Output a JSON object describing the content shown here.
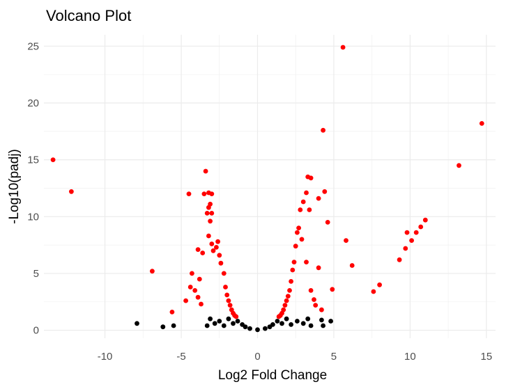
{
  "chart_data": {
    "type": "scatter",
    "title": "Volcano Plot",
    "xlabel": "Log2 Fold Change",
    "ylabel": "-Log10(padj)",
    "xlim": [
      -14,
      15.6
    ],
    "ylim": [
      -0.7,
      26
    ],
    "x_ticks": [
      -10,
      -5,
      0,
      5,
      10,
      15
    ],
    "y_ticks": [
      0,
      5,
      10,
      15,
      20,
      25
    ],
    "x_tick_labels": [
      "-10",
      "-5",
      "0",
      "5",
      "10",
      "15"
    ],
    "y_tick_labels": [
      "0",
      "5",
      "10",
      "15",
      "20",
      "25"
    ],
    "grid": true,
    "legend": "none",
    "colors": {
      "significant": "#ff0000",
      "not_significant": "#000000"
    },
    "series": [
      {
        "color": "#ff0000",
        "points": [
          [
            -13.4,
            15.0
          ],
          [
            -12.2,
            12.2
          ],
          [
            -6.9,
            5.2
          ],
          [
            -5.6,
            1.6
          ],
          [
            -4.7,
            2.6
          ],
          [
            -4.5,
            12.0
          ],
          [
            -4.4,
            3.8
          ],
          [
            -4.3,
            5.0
          ],
          [
            -4.1,
            3.5
          ],
          [
            -3.9,
            2.9
          ],
          [
            -3.9,
            7.1
          ],
          [
            -3.8,
            4.5
          ],
          [
            -3.7,
            2.3
          ],
          [
            -3.6,
            6.8
          ],
          [
            -3.5,
            12.0
          ],
          [
            -3.4,
            14.0
          ],
          [
            -3.3,
            10.3
          ],
          [
            -3.2,
            12.1
          ],
          [
            -3.2,
            10.8
          ],
          [
            -3.1,
            11.1
          ],
          [
            -3.0,
            12.0
          ],
          [
            -3.0,
            10.3
          ],
          [
            -3.1,
            9.6
          ],
          [
            -3.2,
            8.3
          ],
          [
            -3.0,
            7.6
          ],
          [
            -2.9,
            7.0
          ],
          [
            -2.7,
            7.3
          ],
          [
            -2.6,
            7.8
          ],
          [
            -2.5,
            6.6
          ],
          [
            -2.4,
            5.9
          ],
          [
            -2.2,
            5.0
          ],
          [
            -2.1,
            3.8
          ],
          [
            -2.0,
            3.1
          ],
          [
            -1.9,
            2.6
          ],
          [
            -1.8,
            2.2
          ],
          [
            -1.7,
            1.8
          ],
          [
            -1.6,
            1.5
          ],
          [
            -1.5,
            1.3
          ],
          [
            -1.4,
            1.2
          ],
          [
            1.4,
            1.2
          ],
          [
            1.5,
            1.3
          ],
          [
            1.6,
            1.5
          ],
          [
            1.7,
            1.8
          ],
          [
            1.8,
            2.2
          ],
          [
            1.9,
            2.6
          ],
          [
            2.0,
            3.0
          ],
          [
            2.1,
            3.5
          ],
          [
            2.2,
            4.3
          ],
          [
            2.3,
            5.3
          ],
          [
            2.4,
            6.0
          ],
          [
            2.5,
            7.4
          ],
          [
            2.6,
            8.6
          ],
          [
            2.7,
            9.0
          ],
          [
            2.8,
            10.6
          ],
          [
            2.9,
            8.0
          ],
          [
            3.0,
            11.3
          ],
          [
            3.2,
            12.1
          ],
          [
            3.3,
            13.5
          ],
          [
            3.5,
            13.4
          ],
          [
            3.4,
            10.6
          ],
          [
            3.2,
            6.0
          ],
          [
            3.5,
            3.5
          ],
          [
            3.7,
            2.7
          ],
          [
            3.8,
            2.2
          ],
          [
            4.0,
            5.5
          ],
          [
            4.0,
            11.6
          ],
          [
            4.2,
            1.8
          ],
          [
            4.3,
            17.6
          ],
          [
            4.4,
            12.2
          ],
          [
            4.6,
            9.5
          ],
          [
            4.9,
            3.6
          ],
          [
            5.6,
            24.9
          ],
          [
            5.8,
            7.9
          ],
          [
            6.2,
            5.7
          ],
          [
            7.6,
            3.4
          ],
          [
            8.0,
            4.0
          ],
          [
            9.3,
            6.2
          ],
          [
            9.7,
            7.2
          ],
          [
            9.8,
            8.6
          ],
          [
            10.1,
            7.9
          ],
          [
            10.4,
            8.6
          ],
          [
            10.7,
            9.1
          ],
          [
            11.0,
            9.7
          ],
          [
            13.2,
            14.5
          ],
          [
            14.7,
            18.2
          ]
        ]
      },
      {
        "color": "#000000",
        "points": [
          [
            -7.9,
            0.6
          ],
          [
            -6.2,
            0.3
          ],
          [
            -5.5,
            0.4
          ],
          [
            -3.3,
            0.4
          ],
          [
            -3.1,
            1.0
          ],
          [
            -2.8,
            0.6
          ],
          [
            -2.5,
            0.8
          ],
          [
            -2.2,
            0.4
          ],
          [
            -1.9,
            1.0
          ],
          [
            -1.6,
            0.6
          ],
          [
            -1.3,
            0.8
          ],
          [
            -1.0,
            0.5
          ],
          [
            -0.8,
            0.3
          ],
          [
            -0.5,
            0.15
          ],
          [
            0.0,
            0.05
          ],
          [
            0.5,
            0.15
          ],
          [
            0.8,
            0.3
          ],
          [
            1.0,
            0.5
          ],
          [
            1.3,
            0.8
          ],
          [
            1.6,
            0.6
          ],
          [
            1.9,
            1.0
          ],
          [
            2.2,
            0.5
          ],
          [
            2.6,
            0.8
          ],
          [
            3.0,
            0.6
          ],
          [
            3.3,
            1.0
          ],
          [
            3.5,
            0.4
          ],
          [
            4.2,
            0.9
          ],
          [
            4.3,
            0.4
          ],
          [
            4.8,
            0.8
          ]
        ]
      }
    ]
  }
}
